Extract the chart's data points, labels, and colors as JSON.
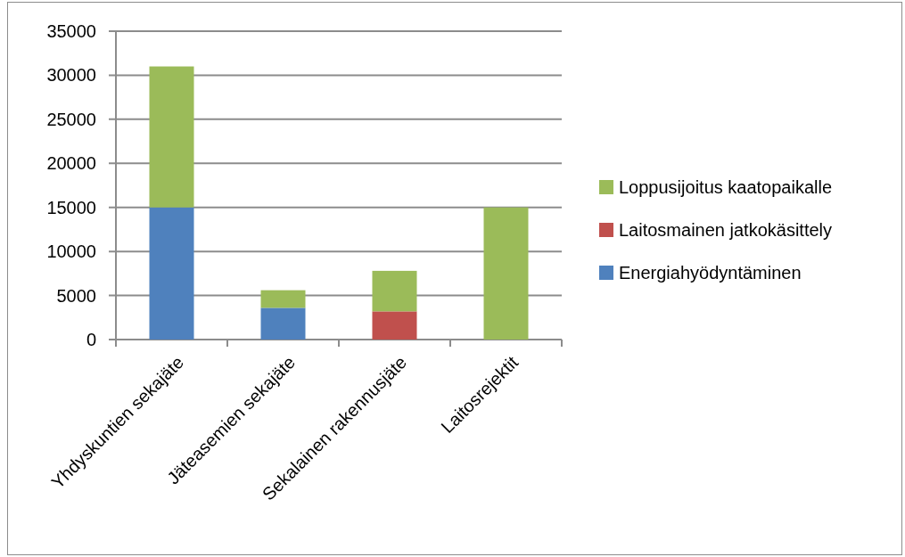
{
  "chart_data": {
    "type": "bar",
    "stacked": true,
    "categories": [
      "Yhdyskuntien sekajäte",
      "Jäteasemien sekajäte",
      "Sekalainen rakennusjäte",
      "Laitosrejektit"
    ],
    "series": [
      {
        "name": "Energiahyödyntäminen",
        "color": "#4f81bd",
        "values": [
          15000,
          3600,
          0,
          0
        ]
      },
      {
        "name": "Laitosmainen jatkokäsittely",
        "color": "#c0504d",
        "values": [
          0,
          0,
          3200,
          0
        ]
      },
      {
        "name": "Loppusijoitus kaatopaikalle",
        "color": "#9bbb59",
        "values": [
          16000,
          2000,
          4600,
          15000
        ]
      }
    ],
    "ylim": [
      0,
      35000
    ],
    "yticks": [
      0,
      5000,
      10000,
      15000,
      20000,
      25000,
      30000,
      35000
    ],
    "grid": "y",
    "legend": "right"
  }
}
